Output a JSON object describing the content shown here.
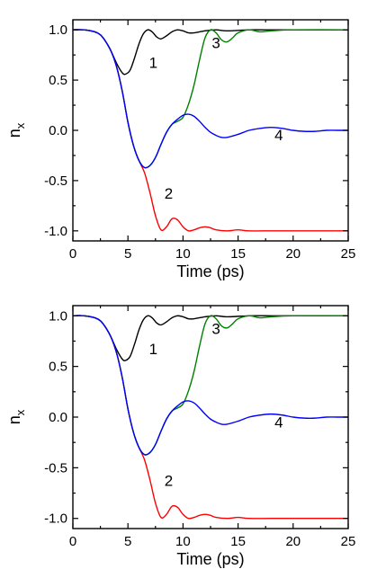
{
  "chart_data": [
    {
      "type": "line",
      "title": "",
      "xlabel": "Time (ps)",
      "ylabel": "n",
      "ylabel_subscript": "x",
      "xlim": [
        0,
        25
      ],
      "ylim": [
        -1.1,
        1.1
      ],
      "xticks": [
        0,
        5,
        10,
        15,
        20,
        25
      ],
      "yticks": [
        1.0,
        0.5,
        0.0,
        -0.5,
        -1.0
      ],
      "xtick_labels": [
        "0",
        "5",
        "10",
        "15",
        "20",
        "25"
      ],
      "ytick_labels": [
        "1.0",
        "0.5",
        "0.0",
        "-0.5",
        "-1.0"
      ],
      "grid": false,
      "series": [
        {
          "label": "1",
          "color": "#000000",
          "x": [
            0,
            1,
            2,
            2.5,
            3,
            3.5,
            4,
            4.5,
            4.8,
            5.2,
            5.6,
            6,
            6.4,
            6.8,
            7.2,
            7.6,
            8,
            8.5,
            9,
            9.5,
            10,
            10.5,
            11,
            12,
            13,
            14,
            16,
            18,
            20,
            25
          ],
          "y": [
            1.0,
            1.0,
            0.98,
            0.95,
            0.88,
            0.78,
            0.66,
            0.57,
            0.56,
            0.6,
            0.72,
            0.86,
            0.96,
            1.0,
            0.98,
            0.93,
            0.91,
            0.94,
            0.98,
            1.0,
            0.99,
            0.97,
            0.97,
            0.99,
            1.0,
            0.99,
            1.0,
            1.0,
            1.0,
            1.0
          ]
        },
        {
          "label": "2",
          "color": "#ff0000",
          "x": [
            0,
            1,
            2,
            2.5,
            3,
            3.5,
            4,
            4.5,
            5,
            5.5,
            6,
            6.5,
            7,
            7.5,
            8,
            8.5,
            9,
            9.5,
            10,
            10.5,
            11,
            11.5,
            12,
            12.5,
            13,
            14,
            15,
            16,
            18,
            20,
            25
          ],
          "y": [
            1.0,
            1.0,
            0.98,
            0.95,
            0.88,
            0.78,
            0.62,
            0.38,
            0.08,
            -0.15,
            -0.3,
            -0.42,
            -0.62,
            -0.85,
            -0.99,
            -0.96,
            -0.88,
            -0.89,
            -0.96,
            -1.0,
            -0.99,
            -0.97,
            -0.96,
            -0.97,
            -0.99,
            -1.0,
            -0.99,
            -1.0,
            -1.0,
            -1.0,
            -1.0
          ]
        },
        {
          "label": "3",
          "color": "#008000",
          "x": [
            0,
            1,
            2,
            2.5,
            3,
            3.5,
            4,
            4.5,
            5,
            5.5,
            6,
            6.5,
            7,
            7.5,
            8,
            8.5,
            9,
            9.5,
            10,
            10.5,
            11,
            11.5,
            12,
            12.5,
            13,
            13.5,
            14,
            14.5,
            15,
            16,
            17,
            18,
            20,
            25
          ],
          "y": [
            1.0,
            1.0,
            0.98,
            0.95,
            0.88,
            0.78,
            0.62,
            0.38,
            0.08,
            -0.15,
            -0.3,
            -0.37,
            -0.35,
            -0.27,
            -0.14,
            -0.02,
            0.06,
            0.09,
            0.13,
            0.26,
            0.45,
            0.7,
            0.92,
            1.0,
            0.97,
            0.9,
            0.88,
            0.92,
            0.97,
            1.0,
            0.98,
            0.99,
            1.0,
            1.0
          ]
        },
        {
          "label": "4",
          "color": "#0000ff",
          "x": [
            0,
            1,
            2,
            2.5,
            3,
            3.5,
            4,
            4.5,
            5,
            5.5,
            6,
            6.5,
            7,
            7.5,
            8,
            8.5,
            9,
            9.5,
            10,
            10.5,
            11,
            11.5,
            12,
            12.5,
            13,
            13.5,
            14,
            15,
            16,
            17,
            18,
            19,
            20,
            21,
            22,
            23,
            24,
            25
          ],
          "y": [
            1.0,
            1.0,
            0.98,
            0.95,
            0.88,
            0.78,
            0.62,
            0.38,
            0.08,
            -0.15,
            -0.3,
            -0.37,
            -0.35,
            -0.27,
            -0.14,
            -0.02,
            0.06,
            0.11,
            0.15,
            0.16,
            0.14,
            0.09,
            0.03,
            -0.02,
            -0.05,
            -0.07,
            -0.07,
            -0.04,
            0.0,
            0.02,
            0.03,
            0.02,
            0.0,
            -0.01,
            -0.01,
            0.0,
            0.0,
            0.0
          ]
        }
      ],
      "annotations": [
        {
          "text": "1",
          "x": 7.3,
          "y": 0.62
        },
        {
          "text": "3",
          "x": 13.0,
          "y": 0.82
        },
        {
          "text": "4",
          "x": 18.7,
          "y": -0.1
        },
        {
          "text": "2",
          "x": 8.7,
          "y": -0.68
        }
      ]
    },
    {
      "type": "line",
      "title": "",
      "xlabel": "Time (ps)",
      "ylabel": "n",
      "ylabel_subscript": "x",
      "xlim": [
        0,
        25
      ],
      "ylim": [
        -1.1,
        1.1
      ],
      "xticks": [
        0,
        5,
        10,
        15,
        20,
        25
      ],
      "yticks": [
        1.0,
        0.5,
        0.0,
        -0.5,
        -1.0
      ],
      "xtick_labels": [
        "0",
        "5",
        "10",
        "15",
        "20",
        "25"
      ],
      "ytick_labels": [
        "1.0",
        "0.5",
        "0.0",
        "-0.5",
        "-1.0"
      ],
      "grid": false,
      "series": [
        {
          "label": "1",
          "color": "#000000",
          "x": [
            0,
            1,
            2,
            2.5,
            3,
            3.5,
            4,
            4.5,
            4.8,
            5.2,
            5.6,
            6,
            6.4,
            6.8,
            7.2,
            7.6,
            8,
            8.5,
            9,
            9.5,
            10,
            10.5,
            11,
            12,
            13,
            14,
            16,
            18,
            20,
            25
          ],
          "y": [
            1.0,
            1.0,
            0.98,
            0.95,
            0.88,
            0.78,
            0.66,
            0.57,
            0.56,
            0.6,
            0.72,
            0.86,
            0.96,
            1.0,
            0.98,
            0.93,
            0.91,
            0.94,
            0.98,
            1.0,
            0.99,
            0.97,
            0.97,
            0.99,
            1.0,
            0.99,
            1.0,
            1.0,
            1.0,
            1.0
          ]
        },
        {
          "label": "2",
          "color": "#ff0000",
          "x": [
            0,
            1,
            2,
            2.5,
            3,
            3.5,
            4,
            4.5,
            5,
            5.5,
            6,
            6.5,
            7,
            7.5,
            8,
            8.5,
            9,
            9.5,
            10,
            10.5,
            11,
            11.5,
            12,
            12.5,
            13,
            14,
            15,
            16,
            18,
            20,
            25
          ],
          "y": [
            1.0,
            1.0,
            0.98,
            0.95,
            0.88,
            0.78,
            0.62,
            0.38,
            0.08,
            -0.15,
            -0.3,
            -0.42,
            -0.62,
            -0.85,
            -0.99,
            -0.96,
            -0.88,
            -0.89,
            -0.96,
            -1.0,
            -0.99,
            -0.97,
            -0.96,
            -0.97,
            -0.99,
            -1.0,
            -0.99,
            -1.0,
            -1.0,
            -1.0,
            -1.0
          ]
        },
        {
          "label": "3",
          "color": "#008000",
          "x": [
            0,
            1,
            2,
            2.5,
            3,
            3.5,
            4,
            4.5,
            5,
            5.5,
            6,
            6.5,
            7,
            7.5,
            8,
            8.5,
            9,
            9.5,
            10,
            10.5,
            11,
            11.5,
            12,
            12.5,
            13,
            13.5,
            14,
            14.5,
            15,
            16,
            17,
            18,
            20,
            25
          ],
          "y": [
            1.0,
            1.0,
            0.98,
            0.95,
            0.88,
            0.78,
            0.62,
            0.38,
            0.08,
            -0.15,
            -0.3,
            -0.37,
            -0.35,
            -0.27,
            -0.14,
            -0.02,
            0.06,
            0.09,
            0.13,
            0.26,
            0.45,
            0.7,
            0.92,
            1.0,
            0.97,
            0.9,
            0.88,
            0.92,
            0.97,
            1.0,
            0.98,
            0.99,
            1.0,
            1.0
          ]
        },
        {
          "label": "4",
          "color": "#0000ff",
          "x": [
            0,
            1,
            2,
            2.5,
            3,
            3.5,
            4,
            4.5,
            5,
            5.5,
            6,
            6.5,
            7,
            7.5,
            8,
            8.5,
            9,
            9.5,
            10,
            10.5,
            11,
            11.5,
            12,
            12.5,
            13,
            13.5,
            14,
            15,
            16,
            17,
            18,
            19,
            20,
            21,
            22,
            23,
            24,
            25
          ],
          "y": [
            1.0,
            1.0,
            0.98,
            0.95,
            0.88,
            0.78,
            0.62,
            0.38,
            0.08,
            -0.15,
            -0.3,
            -0.37,
            -0.35,
            -0.27,
            -0.14,
            -0.02,
            0.06,
            0.11,
            0.15,
            0.16,
            0.14,
            0.09,
            0.03,
            -0.02,
            -0.05,
            -0.07,
            -0.07,
            -0.04,
            0.0,
            0.02,
            0.03,
            0.02,
            0.0,
            -0.01,
            -0.01,
            0.0,
            0.0,
            0.0
          ]
        }
      ],
      "annotations": [
        {
          "text": "1",
          "x": 7.3,
          "y": 0.62
        },
        {
          "text": "3",
          "x": 13.0,
          "y": 0.82
        },
        {
          "text": "4",
          "x": 18.7,
          "y": -0.1
        },
        {
          "text": "2",
          "x": 8.7,
          "y": -0.68
        }
      ]
    }
  ]
}
